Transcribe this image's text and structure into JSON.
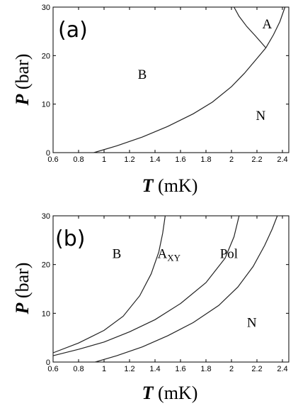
{
  "chart_data": [
    {
      "type": "line",
      "panel_label": "(a)",
      "xlabel_var": "T",
      "xlabel_unit": " (mK)",
      "ylabel_var": "P",
      "ylabel_unit": " (bar)",
      "xlim": [
        0.6,
        2.45
      ],
      "ylim": [
        0,
        30
      ],
      "xticks": [
        0.6,
        0.8,
        1,
        1.2,
        1.4,
        1.6,
        1.8,
        2,
        2.2,
        2.4
      ],
      "xtick_labels": [
        "0.6",
        "0.8",
        "1",
        "1.2",
        "1.4",
        "1.6",
        "1.8",
        "2",
        "2.2",
        "2.4"
      ],
      "yticks": [
        0,
        10,
        20,
        30
      ],
      "ytick_labels": [
        "0",
        "10",
        "20",
        "30"
      ],
      "series": [
        {
          "points": [
            [
              0.92,
              0
            ],
            [
              1.1,
              1.4
            ],
            [
              1.3,
              3.2
            ],
            [
              1.5,
              5.4
            ],
            [
              1.7,
              8.0
            ],
            [
              1.85,
              10.4
            ],
            [
              2.0,
              13.6
            ],
            [
              2.1,
              16.3
            ],
            [
              2.2,
              19.4
            ],
            [
              2.27,
              21.6
            ],
            [
              2.33,
              24.3
            ],
            [
              2.38,
              27.0
            ],
            [
              2.42,
              30.0
            ]
          ]
        },
        {
          "points": [
            [
              2.02,
              30.0
            ],
            [
              2.06,
              28.1
            ],
            [
              2.12,
              26.0
            ],
            [
              2.19,
              24.0
            ],
            [
              2.27,
              21.6
            ]
          ]
        }
      ],
      "annotations": [
        {
          "text": "A",
          "x": 2.28,
          "y": 26.5
        },
        {
          "text": "B",
          "x": 1.3,
          "y": 16.1
        },
        {
          "text": "N",
          "x": 2.23,
          "y": 7.6
        }
      ]
    },
    {
      "type": "line",
      "panel_label": "(b)",
      "xlabel_var": "T",
      "xlabel_unit": " (mK)",
      "ylabel_var": "P",
      "ylabel_unit": " (bar)",
      "xlim": [
        0.6,
        2.45
      ],
      "ylim": [
        0,
        30
      ],
      "xticks": [
        0.6,
        0.8,
        1,
        1.2,
        1.4,
        1.6,
        1.8,
        2,
        2.2,
        2.4
      ],
      "xtick_labels": [
        "0.6",
        "0.8",
        "1",
        "1.2",
        "1.4",
        "1.6",
        "1.8",
        "2",
        "2.2",
        "2.4"
      ],
      "yticks": [
        0,
        10,
        20,
        30
      ],
      "ytick_labels": [
        "0",
        "10",
        "20",
        "30"
      ],
      "series": [
        {
          "points": [
            [
              0.6,
              1.9
            ],
            [
              0.8,
              3.9
            ],
            [
              1.0,
              6.5
            ],
            [
              1.15,
              9.4
            ],
            [
              1.28,
              13.6
            ],
            [
              1.37,
              18.1
            ],
            [
              1.43,
              22.6
            ],
            [
              1.46,
              26.4
            ],
            [
              1.48,
              30.0
            ]
          ]
        },
        {
          "points": [
            [
              0.6,
              1.3
            ],
            [
              0.8,
              2.6
            ],
            [
              1.0,
              4.1
            ],
            [
              1.2,
              6.2
            ],
            [
              1.4,
              8.7
            ],
            [
              1.6,
              12.0
            ],
            [
              1.8,
              16.3
            ],
            [
              1.95,
              21.3
            ],
            [
              2.02,
              25.7
            ],
            [
              2.06,
              30.0
            ]
          ]
        },
        {
          "points": [
            [
              0.93,
              0
            ],
            [
              1.1,
              1.3
            ],
            [
              1.3,
              3.1
            ],
            [
              1.5,
              5.4
            ],
            [
              1.7,
              8.1
            ],
            [
              1.9,
              11.6
            ],
            [
              2.05,
              15.4
            ],
            [
              2.17,
              19.6
            ],
            [
              2.26,
              23.9
            ],
            [
              2.32,
              27.3
            ],
            [
              2.36,
              30.0
            ]
          ]
        }
      ],
      "annotations": [
        {
          "text": "B",
          "x": 1.1,
          "y": 22.2
        },
        {
          "text": "A",
          "sub": "XY",
          "x": 1.51,
          "y": 22.2
        },
        {
          "text": "Pol",
          "x": 1.98,
          "y": 22.2
        },
        {
          "text": "N",
          "x": 2.16,
          "y": 8.1
        }
      ]
    }
  ]
}
